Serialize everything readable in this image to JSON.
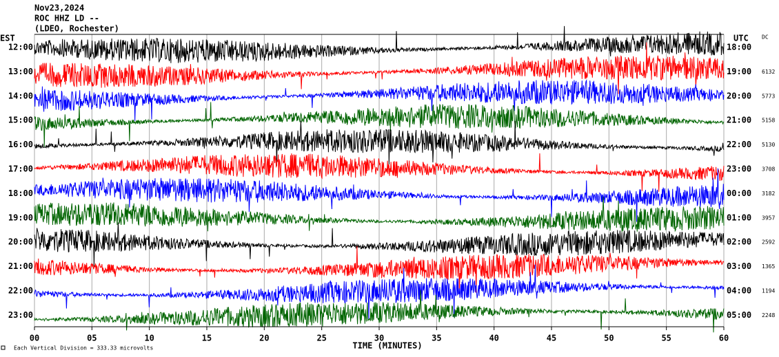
{
  "chart_data": {
    "type": "helicorder",
    "title_lines": [
      "Nov23,2024",
      "ROC HHZ LD --",
      "(LDEO, Rochester)"
    ],
    "left_axis_title": "EST",
    "right_axis_title": "UTC",
    "dc_title": "DC",
    "row_labels_left": [
      "12:00",
      "13:00",
      "14:00",
      "15:00",
      "16:00",
      "17:00",
      "18:00",
      "19:00",
      "20:00",
      "21:00",
      "22:00",
      "23:00"
    ],
    "row_labels_right": [
      "18:00",
      "19:00",
      "20:00",
      "21:00",
      "22:00",
      "23:00",
      "00:00",
      "01:00",
      "02:00",
      "03:00",
      "04:00",
      "05:00"
    ],
    "dc_values": [
      null,
      6132,
      5773,
      5158,
      5130,
      3708,
      3182,
      3957,
      2592,
      1365,
      1194,
      2248
    ],
    "colors": [
      "#000000",
      "#ff0000",
      "#0000ff",
      "#006400"
    ],
    "xlabel": "TIME (MINUTES)",
    "xlim": [
      0,
      60
    ],
    "xticks": [
      {
        "value": 0,
        "label": "00"
      },
      {
        "value": 5,
        "label": "05"
      },
      10,
      15,
      20,
      25,
      30,
      35,
      40,
      45,
      50,
      55,
      60
    ],
    "footnote": "Each Vertical Division = 333.33 microvolts",
    "grid": true
  }
}
